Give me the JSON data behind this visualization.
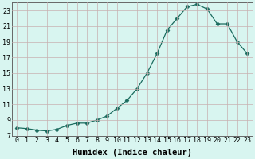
{
  "x": [
    0,
    1,
    2,
    3,
    4,
    5,
    6,
    7,
    8,
    9,
    10,
    11,
    12,
    13,
    14,
    15,
    16,
    17,
    18,
    19,
    20,
    21,
    22,
    23
  ],
  "y": [
    8.0,
    7.9,
    7.7,
    7.6,
    7.8,
    8.3,
    8.6,
    8.6,
    9.0,
    9.5,
    10.5,
    11.5,
    13.0,
    15.0,
    17.5,
    20.5,
    22.0,
    23.5,
    23.8,
    23.2,
    21.3,
    21.3,
    19.0,
    17.5
  ],
  "line_color": "#1a6b5e",
  "marker": "D",
  "marker_size": 2.5,
  "xlabel": "Humidex (Indice chaleur)",
  "bg_color": "#d8f5f0",
  "grid_color_major": "#c8b0b0",
  "grid_color_minor": "#ddd0d0",
  "xlim": [
    -0.5,
    23.5
  ],
  "ylim": [
    7,
    24
  ],
  "xticks": [
    0,
    1,
    2,
    3,
    4,
    5,
    6,
    7,
    8,
    9,
    10,
    11,
    12,
    13,
    14,
    15,
    16,
    17,
    18,
    19,
    20,
    21,
    22,
    23
  ],
  "yticks": [
    7,
    9,
    11,
    13,
    15,
    17,
    19,
    21,
    23
  ],
  "tick_fontsize": 6.0,
  "label_fontsize": 7.5
}
